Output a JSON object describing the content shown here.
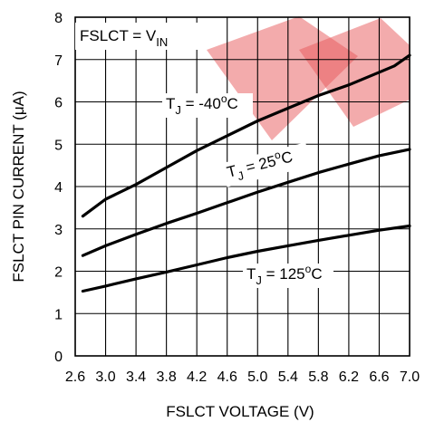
{
  "chart_data": {
    "type": "line",
    "xlabel": "FSLCT VOLTAGE (V)",
    "ylabel": "FSLCT PIN CURRENT (μA)",
    "xlim": [
      2.6,
      7.0
    ],
    "ylim": [
      0,
      8
    ],
    "xticks": [
      "2.6",
      "3.0",
      "3.4",
      "3.8",
      "4.2",
      "4.6",
      "5.0",
      "5.4",
      "5.8",
      "6.2",
      "6.6",
      "7.0"
    ],
    "yticks": [
      "0",
      "1",
      "2",
      "3",
      "4",
      "5",
      "6",
      "7",
      "8"
    ],
    "grid": true,
    "condition": {
      "main": "FSLCT = V",
      "sub": "IN"
    },
    "series": [
      {
        "name": "T_J = -40°C",
        "label": {
          "t": "T",
          "sub": "J",
          "eq": " = -40",
          "sup": "o",
          "unit": "C"
        },
        "x": [
          2.7,
          3.0,
          3.4,
          3.8,
          4.2,
          4.6,
          5.0,
          5.4,
          5.8,
          6.2,
          6.6,
          6.8,
          7.0
        ],
        "y": [
          3.3,
          3.7,
          4.05,
          4.45,
          4.85,
          5.2,
          5.55,
          5.85,
          6.15,
          6.4,
          6.7,
          6.85,
          7.1
        ]
      },
      {
        "name": "T_J = 25°C",
        "label": {
          "t": "T",
          "sub": "J",
          "eq": " = 25",
          "sup": "o",
          "unit": "C"
        },
        "x": [
          2.7,
          3.0,
          3.4,
          3.8,
          4.2,
          4.6,
          5.0,
          5.4,
          5.8,
          6.2,
          6.6,
          7.0
        ],
        "y": [
          2.37,
          2.6,
          2.87,
          3.13,
          3.37,
          3.62,
          3.87,
          4.1,
          4.33,
          4.53,
          4.73,
          4.88
        ]
      },
      {
        "name": "T_J = 125°C",
        "label": {
          "t": "T",
          "sub": "J",
          "eq": " = 125",
          "sup": "o",
          "unit": "C"
        },
        "x": [
          2.7,
          3.0,
          3.4,
          3.8,
          4.2,
          4.6,
          5.0,
          5.4,
          5.8,
          6.2,
          6.6,
          7.0
        ],
        "y": [
          1.53,
          1.65,
          1.82,
          1.98,
          2.15,
          2.32,
          2.47,
          2.6,
          2.73,
          2.85,
          2.97,
          3.07
        ]
      }
    ]
  },
  "colors": {
    "curve": "#000000",
    "grid": "#000000",
    "watermark": "#e8585a"
  },
  "watermark": {
    "icon": "brand-logo-watermark"
  }
}
